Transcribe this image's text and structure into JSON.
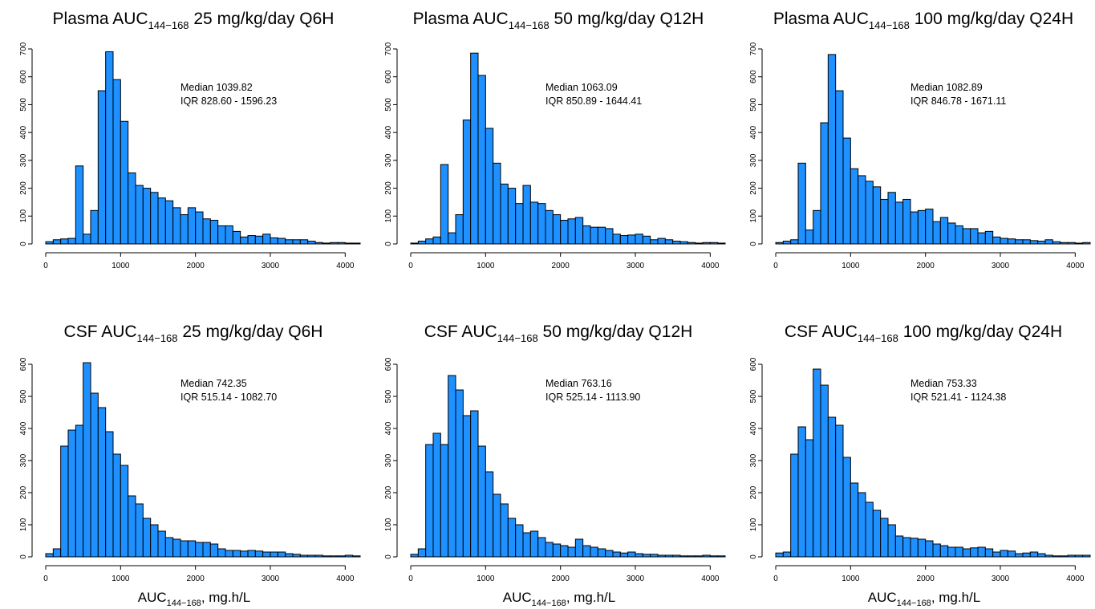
{
  "chart_data": [
    {
      "type": "histogram",
      "title": {
        "main": "Plasma AUC",
        "sub": "144−168",
        "rest": " 25 mg/kg/day Q6H"
      },
      "annotation": {
        "median": "Median 1039.82",
        "iqr": "IQR 828.60 - 1596.23"
      },
      "xlabel": null,
      "x_ticks": [
        "0",
        "1000",
        "2000",
        "3000",
        "4000"
      ],
      "y_ticks": [
        "0",
        "100",
        "200",
        "300",
        "400",
        "500",
        "600",
        "700"
      ],
      "xlim": [
        0,
        4200
      ],
      "ylim": [
        0,
        700
      ],
      "bin_width": 100,
      "bin_start": 0,
      "values": [
        8,
        15,
        18,
        20,
        280,
        35,
        120,
        550,
        690,
        590,
        440,
        255,
        210,
        200,
        185,
        165,
        155,
        130,
        105,
        130,
        115,
        90,
        85,
        65,
        65,
        45,
        25,
        30,
        28,
        35,
        22,
        20,
        15,
        15,
        15,
        10,
        5,
        3,
        5,
        5,
        3,
        3
      ]
    },
    {
      "type": "histogram",
      "title": {
        "main": "Plasma AUC",
        "sub": "144−168",
        "rest": " 50 mg/kg/day Q12H"
      },
      "annotation": {
        "median": "Median 1063.09",
        "iqr": "IQR 850.89 - 1644.41"
      },
      "xlabel": null,
      "x_ticks": [
        "0",
        "1000",
        "2000",
        "3000",
        "4000"
      ],
      "y_ticks": [
        "0",
        "100",
        "200",
        "300",
        "400",
        "500",
        "600",
        "700"
      ],
      "xlim": [
        0,
        4200
      ],
      "ylim": [
        0,
        700
      ],
      "bin_width": 100,
      "bin_start": 0,
      "values": [
        3,
        10,
        18,
        25,
        285,
        40,
        105,
        445,
        685,
        605,
        415,
        290,
        215,
        200,
        145,
        210,
        150,
        145,
        120,
        105,
        85,
        90,
        95,
        65,
        60,
        60,
        55,
        35,
        30,
        32,
        35,
        28,
        15,
        20,
        15,
        10,
        8,
        5,
        3,
        5,
        5,
        3
      ]
    },
    {
      "type": "histogram",
      "title": {
        "main": "Plasma AUC",
        "sub": "144−168",
        "rest": " 100 mg/kg/day Q24H"
      },
      "annotation": {
        "median": "Median 1082.89",
        "iqr": "IQR 846.78 - 1671.11"
      },
      "xlabel": null,
      "x_ticks": [
        "0",
        "1000",
        "2000",
        "3000",
        "4000"
      ],
      "y_ticks": [
        "0",
        "100",
        "200",
        "300",
        "400",
        "500",
        "600",
        "700"
      ],
      "xlim": [
        0,
        4200
      ],
      "ylim": [
        0,
        700
      ],
      "bin_width": 100,
      "bin_start": 0,
      "values": [
        5,
        10,
        15,
        290,
        50,
        120,
        435,
        680,
        550,
        380,
        270,
        245,
        225,
        205,
        160,
        185,
        150,
        160,
        115,
        120,
        125,
        80,
        95,
        75,
        65,
        55,
        55,
        40,
        45,
        25,
        20,
        18,
        15,
        15,
        12,
        10,
        15,
        8,
        5,
        5,
        3,
        5
      ]
    },
    {
      "type": "histogram",
      "title": {
        "main": "CSF AUC",
        "sub": "144−168",
        "rest": " 25 mg/kg/day Q6H"
      },
      "annotation": {
        "median": "Median 742.35",
        "iqr": "IQR 515.14 - 1082.70"
      },
      "xlabel": {
        "main": "AUC",
        "sub": "144−168",
        "rest": ", mg.h/L"
      },
      "x_ticks": [
        "0",
        "1000",
        "2000",
        "3000",
        "4000"
      ],
      "y_ticks": [
        "0",
        "100",
        "200",
        "300",
        "400",
        "500",
        "600"
      ],
      "xlim": [
        0,
        4200
      ],
      "ylim": [
        0,
        600
      ],
      "bin_width": 100,
      "bin_start": 0,
      "values": [
        10,
        25,
        345,
        395,
        410,
        605,
        510,
        465,
        390,
        320,
        285,
        190,
        165,
        120,
        100,
        80,
        60,
        55,
        50,
        50,
        45,
        45,
        40,
        25,
        20,
        20,
        18,
        20,
        18,
        15,
        15,
        15,
        10,
        8,
        5,
        5,
        5,
        3,
        3,
        3,
        5,
        3
      ]
    },
    {
      "type": "histogram",
      "title": {
        "main": "CSF AUC",
        "sub": "144−168",
        "rest": " 50 mg/kg/day Q12H"
      },
      "annotation": {
        "median": "Median 763.16",
        "iqr": "IQR 525.14 - 1113.90"
      },
      "xlabel": {
        "main": "AUC",
        "sub": "144−168",
        "rest": ", mg.h/L"
      },
      "x_ticks": [
        "0",
        "1000",
        "2000",
        "3000",
        "4000"
      ],
      "y_ticks": [
        "0",
        "100",
        "200",
        "300",
        "400",
        "500",
        "600"
      ],
      "xlim": [
        0,
        4200
      ],
      "ylim": [
        0,
        600
      ],
      "bin_width": 100,
      "bin_start": 0,
      "values": [
        8,
        25,
        350,
        385,
        350,
        565,
        520,
        440,
        455,
        345,
        265,
        195,
        165,
        120,
        100,
        75,
        80,
        60,
        45,
        40,
        35,
        30,
        55,
        35,
        30,
        25,
        20,
        15,
        12,
        15,
        10,
        8,
        8,
        5,
        5,
        5,
        3,
        3,
        3,
        5,
        3,
        3
      ]
    },
    {
      "type": "histogram",
      "title": {
        "main": "CSF AUC",
        "sub": "144−168",
        "rest": " 100 mg/kg/day Q24H"
      },
      "annotation": {
        "median": "Median 753.33",
        "iqr": "IQR 521.41 - 1124.38"
      },
      "xlabel": {
        "main": "AUC",
        "sub": "144−168",
        "rest": ", mg.h/L"
      },
      "x_ticks": [
        "0",
        "1000",
        "2000",
        "3000",
        "4000"
      ],
      "y_ticks": [
        "0",
        "100",
        "200",
        "300",
        "400",
        "500",
        "600"
      ],
      "xlim": [
        0,
        4200
      ],
      "ylim": [
        0,
        600
      ],
      "bin_width": 100,
      "bin_start": 0,
      "values": [
        12,
        15,
        320,
        405,
        365,
        585,
        535,
        435,
        410,
        310,
        230,
        200,
        170,
        145,
        120,
        100,
        65,
        60,
        58,
        55,
        50,
        40,
        35,
        30,
        30,
        25,
        28,
        30,
        25,
        15,
        20,
        18,
        10,
        12,
        15,
        10,
        5,
        3,
        3,
        5,
        5,
        5
      ]
    }
  ],
  "colors": {
    "bar_fill": "#1e90ff",
    "bar_stroke": "#000000",
    "background": "#ffffff"
  }
}
